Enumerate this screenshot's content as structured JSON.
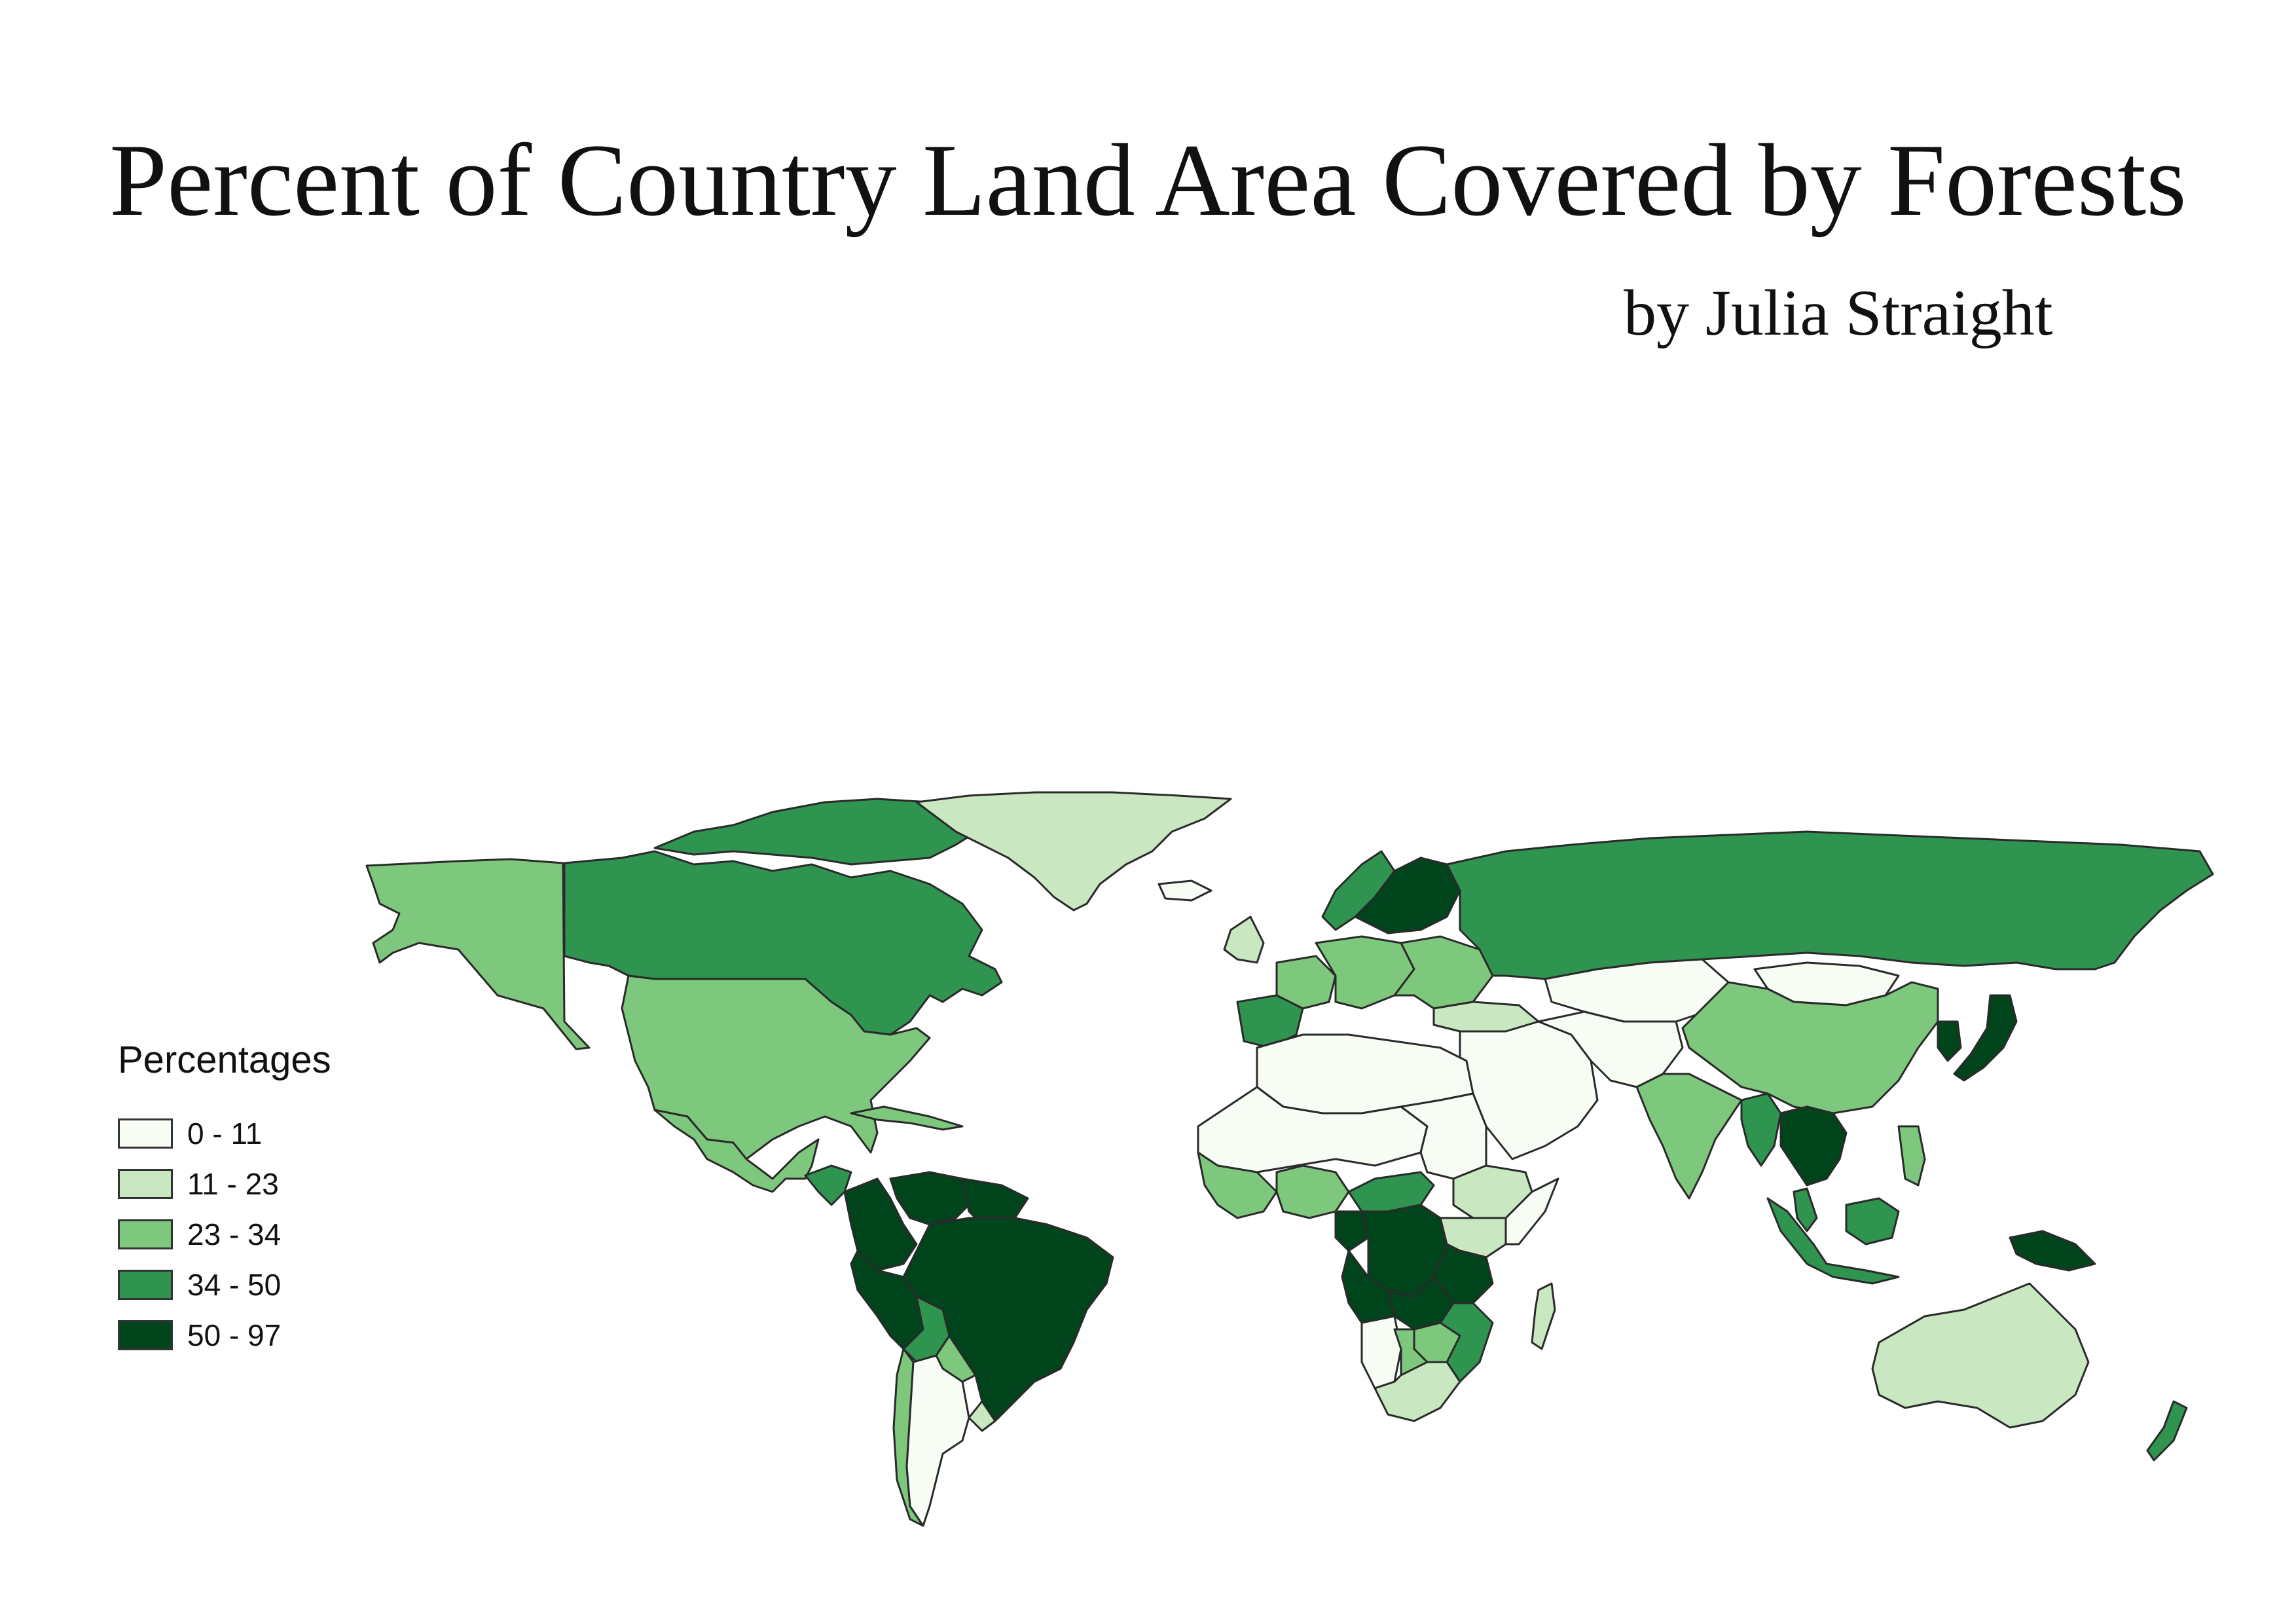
{
  "title": "Percent of Country Land Area Covered by Forests",
  "subtitle": "by Julia Straight",
  "legend": {
    "title": "Percentages",
    "classes": [
      {
        "label": "0 - 11",
        "color": "#f7fcf5"
      },
      {
        "label": "11 - 23",
        "color": "#c9e8c1"
      },
      {
        "label": "23 - 34",
        "color": "#7ec87d"
      },
      {
        "label": "34 - 50",
        "color": "#2e9450"
      },
      {
        "label": "50 - 97",
        "color": "#00441b"
      }
    ]
  },
  "regions": [
    {
      "name": "alaska",
      "class": 2
    },
    {
      "name": "canada",
      "class": 3
    },
    {
      "name": "usa",
      "class": 2
    },
    {
      "name": "mexico",
      "class": 2
    },
    {
      "name": "central-america",
      "class": 3
    },
    {
      "name": "cuba-caribbean",
      "class": 2
    },
    {
      "name": "greenland",
      "class": 1
    },
    {
      "name": "colombia",
      "class": 4
    },
    {
      "name": "venezuela",
      "class": 4
    },
    {
      "name": "guianas",
      "class": 4
    },
    {
      "name": "brazil",
      "class": 4
    },
    {
      "name": "peru",
      "class": 4
    },
    {
      "name": "bolivia",
      "class": 3
    },
    {
      "name": "paraguay",
      "class": 2
    },
    {
      "name": "uruguay",
      "class": 1
    },
    {
      "name": "chile",
      "class": 2
    },
    {
      "name": "argentina",
      "class": 0
    },
    {
      "name": "iceland",
      "class": 0
    },
    {
      "name": "uk-ireland",
      "class": 1
    },
    {
      "name": "iberia",
      "class": 3
    },
    {
      "name": "france",
      "class": 2
    },
    {
      "name": "central-europe",
      "class": 2
    },
    {
      "name": "scandinavia",
      "class": 3
    },
    {
      "name": "finland-sweden",
      "class": 4
    },
    {
      "name": "eastern-europe",
      "class": 2
    },
    {
      "name": "russia",
      "class": 3
    },
    {
      "name": "kazakhstan",
      "class": 0
    },
    {
      "name": "mongolia",
      "class": 0
    },
    {
      "name": "china",
      "class": 2
    },
    {
      "name": "korea",
      "class": 4
    },
    {
      "name": "japan",
      "class": 4
    },
    {
      "name": "middle-east",
      "class": 0
    },
    {
      "name": "central-asia",
      "class": 0
    },
    {
      "name": "turkey",
      "class": 1
    },
    {
      "name": "india",
      "class": 2
    },
    {
      "name": "myanmar",
      "class": 3
    },
    {
      "name": "indochina",
      "class": 4
    },
    {
      "name": "malaysia",
      "class": 3
    },
    {
      "name": "indonesia-sumatra",
      "class": 3
    },
    {
      "name": "borneo",
      "class": 3
    },
    {
      "name": "philippines",
      "class": 2
    },
    {
      "name": "new-guinea",
      "class": 4
    },
    {
      "name": "north-africa",
      "class": 0
    },
    {
      "name": "sahel",
      "class": 0
    },
    {
      "name": "west-africa-coast",
      "class": 2
    },
    {
      "name": "nigeria",
      "class": 2
    },
    {
      "name": "central-african-republic",
      "class": 3
    },
    {
      "name": "sudan",
      "class": 0
    },
    {
      "name": "ethiopia",
      "class": 1
    },
    {
      "name": "somalia",
      "class": 0
    },
    {
      "name": "gabon",
      "class": 4
    },
    {
      "name": "drc",
      "class": 4
    },
    {
      "name": "east-africa",
      "class": 1
    },
    {
      "name": "tanzania",
      "class": 4
    },
    {
      "name": "angola",
      "class": 4
    },
    {
      "name": "zambia",
      "class": 4
    },
    {
      "name": "mozambique",
      "class": 3
    },
    {
      "name": "zimbabwe",
      "class": 2
    },
    {
      "name": "namibia",
      "class": 0
    },
    {
      "name": "botswana",
      "class": 2
    },
    {
      "name": "south-africa",
      "class": 1
    },
    {
      "name": "madagascar",
      "class": 1
    },
    {
      "name": "australia",
      "class": 1
    },
    {
      "name": "new-zealand",
      "class": 3
    }
  ]
}
